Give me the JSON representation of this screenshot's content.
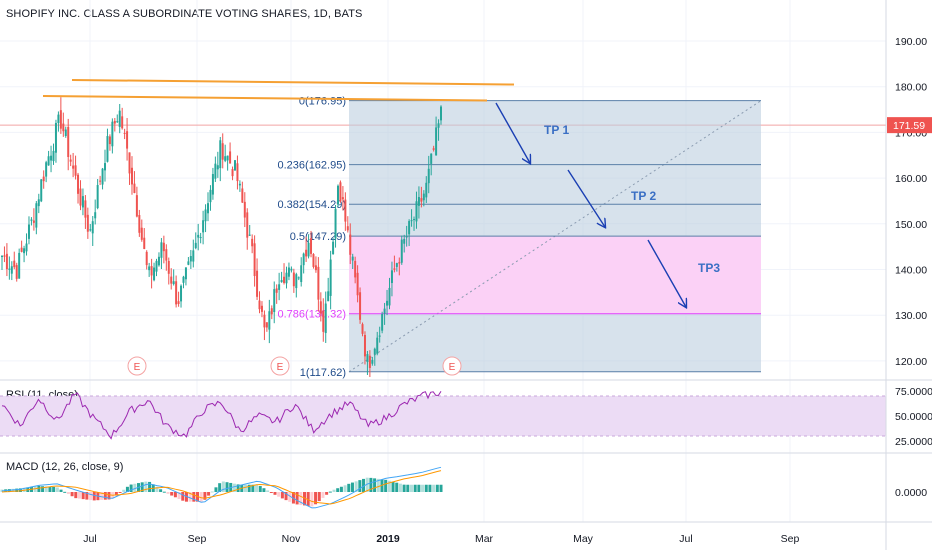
{
  "header": {
    "title": "SHOPIFY INC. CLASS A SUBORDINATE VOTING SHARES, 1D, BATS"
  },
  "price_axis": {
    "ticks": [
      "190.00",
      "180.00",
      "170.00",
      "160.00",
      "150.00",
      "140.00",
      "130.00",
      "120.00"
    ],
    "last_price": "171.59"
  },
  "rsi_pane": {
    "label": "RSI (11, close)",
    "ticks": [
      "75.0000",
      "50.0000",
      "25.0000"
    ]
  },
  "macd_pane": {
    "label": "MACD (12, 26, close, 9)",
    "ticks": [
      "0.0000"
    ]
  },
  "time_axis": {
    "labels": [
      "Jul",
      "Sep",
      "Nov",
      "2019",
      "Mar",
      "May",
      "Jul",
      "Sep"
    ]
  },
  "fib_levels": [
    {
      "label": "0(176.95)",
      "price": 176.95
    },
    {
      "label": "0.236(162.95)",
      "price": 162.95
    },
    {
      "label": "0.382(154.29)",
      "price": 154.29
    },
    {
      "label": "0.5(147.29)",
      "price": 147.29
    },
    {
      "label": "0.786(130.32)",
      "price": 130.32
    },
    {
      "label": "1(117.62)",
      "price": 117.62
    }
  ],
  "targets": [
    "TP 1",
    "TP 2",
    "TP3"
  ],
  "earnings_markers": [
    "E",
    "E",
    "E"
  ],
  "colors": {
    "up": "#26a69a",
    "down": "#ef5350",
    "fib_box": "#bccfe0",
    "pink_zone": "#fdd0f7",
    "orange_line": "#f5a033",
    "arrow": "#1a3fb3",
    "rsi_line": "#9c27b0",
    "rsi_band": "#ecdcf5",
    "macd_line": "#42a5f5",
    "signal_line": "#ff9800",
    "last_price_bg": "#ef5350"
  },
  "chart_data": {
    "type": "candlestick",
    "title": "SHOPIFY INC. CLASS A SUBORDINATE VOTING SHARES, 1D, BATS",
    "ylim": [
      114,
      198
    ],
    "x_labels": [
      "Jul",
      "Sep",
      "Nov",
      "2019",
      "Mar",
      "May",
      "Jul",
      "Sep"
    ],
    "close_path": [
      {
        "t": "start",
        "close": 143
      },
      {
        "t": "",
        "close": 140
      },
      {
        "t": "",
        "close": 150
      },
      {
        "t": "",
        "close": 163
      },
      {
        "t": "",
        "close": 173
      },
      {
        "t": "",
        "close": 160
      },
      {
        "t": "",
        "close": 148
      },
      {
        "t": "Jul",
        "close": 165
      },
      {
        "t": "",
        "close": 175
      },
      {
        "t": "",
        "close": 158
      },
      {
        "t": "",
        "close": 138
      },
      {
        "t": "",
        "close": 145
      },
      {
        "t": "",
        "close": 133
      },
      {
        "t": "",
        "close": 142
      },
      {
        "t": "Sep",
        "close": 155
      },
      {
        "t": "",
        "close": 167
      },
      {
        "t": "",
        "close": 161
      },
      {
        "t": "",
        "close": 145
      },
      {
        "t": "",
        "close": 125
      },
      {
        "t": "",
        "close": 140
      },
      {
        "t": "Nov",
        "close": 138
      },
      {
        "t": "",
        "close": 147
      },
      {
        "t": "",
        "close": 128
      },
      {
        "t": "",
        "close": 160
      },
      {
        "t": "",
        "close": 140
      },
      {
        "t": "",
        "close": 119
      },
      {
        "t": "",
        "close": 130
      },
      {
        "t": "2019",
        "close": 142
      },
      {
        "t": "",
        "close": 150
      },
      {
        "t": "",
        "close": 158
      },
      {
        "t": "end",
        "close": 174
      }
    ],
    "rsi": [
      62,
      40,
      68,
      45,
      72,
      48,
      30,
      55,
      66,
      40,
      30,
      56,
      64,
      35,
      50,
      44,
      62,
      36,
      52,
      63,
      40,
      48,
      62,
      70,
      74
    ],
    "macd": [
      0.2,
      0.5,
      1.2,
      1.5,
      0.4,
      -0.6,
      -1.2,
      0.3,
      1.5,
      0.8,
      -0.7,
      -2.0,
      0.4,
      1.2,
      2.0,
      0.8,
      -1.3,
      -3.0,
      -2.1,
      -0.5,
      1.5,
      2.5,
      3.0,
      3.6,
      4.5
    ],
    "signal": [
      0.0,
      0.2,
      0.7,
      1.1,
      0.9,
      0.1,
      -0.6,
      -0.3,
      0.6,
      0.9,
      0.1,
      -1.2,
      -0.5,
      0.6,
      1.4,
      1.1,
      -0.3,
      -1.8,
      -2.2,
      -1.2,
      0.3,
      1.5,
      2.4,
      3.0,
      3.9
    ],
    "last_price": 171.59,
    "fibonacci": {
      "high": 176.95,
      "low": 117.62,
      "levels": [
        0,
        0.236,
        0.382,
        0.5,
        0.786,
        1
      ]
    },
    "annotations": [
      "TP 1",
      "TP 2",
      "TP3"
    ]
  }
}
